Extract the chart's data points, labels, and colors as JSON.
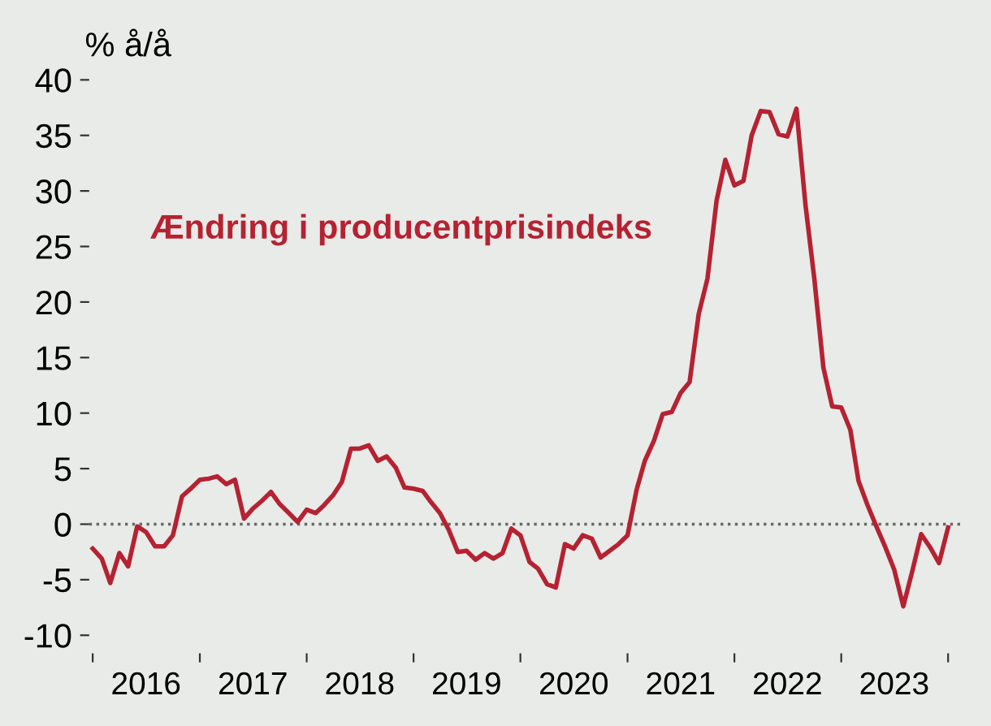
{
  "chart_data": {
    "type": "line",
    "ylabel": "% å/å",
    "legend": false,
    "grid": false,
    "marker": "none",
    "line_style": "solid",
    "x": [
      "2016-01",
      "2016-02",
      "2016-03",
      "2016-04",
      "2016-05",
      "2016-06",
      "2016-07",
      "2016-08",
      "2016-09",
      "2016-10",
      "2016-11",
      "2016-12",
      "2017-01",
      "2017-02",
      "2017-03",
      "2017-04",
      "2017-05",
      "2017-06",
      "2017-07",
      "2017-08",
      "2017-09",
      "2017-10",
      "2017-11",
      "2017-12",
      "2018-01",
      "2018-02",
      "2018-03",
      "2018-04",
      "2018-05",
      "2018-06",
      "2018-07",
      "2018-08",
      "2018-09",
      "2018-10",
      "2018-11",
      "2018-12",
      "2019-01",
      "2019-02",
      "2019-03",
      "2019-04",
      "2019-05",
      "2019-06",
      "2019-07",
      "2019-08",
      "2019-09",
      "2019-10",
      "2019-11",
      "2019-12",
      "2020-01",
      "2020-02",
      "2020-03",
      "2020-04",
      "2020-05",
      "2020-06",
      "2020-07",
      "2020-08",
      "2020-09",
      "2020-10",
      "2020-11",
      "2020-12",
      "2021-01",
      "2021-02",
      "2021-03",
      "2021-04",
      "2021-05",
      "2021-06",
      "2021-07",
      "2021-08",
      "2021-09",
      "2021-10",
      "2021-11",
      "2021-12",
      "2022-01",
      "2022-02",
      "2022-03",
      "2022-04",
      "2022-05",
      "2022-06",
      "2022-07",
      "2022-08",
      "2022-09",
      "2022-10",
      "2022-11",
      "2022-12",
      "2023-01",
      "2023-02",
      "2023-03",
      "2023-04",
      "2023-05",
      "2023-06",
      "2023-07",
      "2023-08",
      "2023-09",
      "2023-10",
      "2023-11",
      "2023-12",
      "2024-01"
    ],
    "series": [
      {
        "name": "Ændring i producentprisindeks",
        "color": "#b52232",
        "values": [
          -2.2,
          -3.1,
          -5.3,
          -2.6,
          -3.8,
          -0.2,
          -0.7,
          -2.0,
          -2.0,
          -1.0,
          2.5,
          3.2,
          4.0,
          4.1,
          4.3,
          3.6,
          4.0,
          0.5,
          1.4,
          2.1,
          2.9,
          1.8,
          1.0,
          0.2,
          1.3,
          1.0,
          1.7,
          2.6,
          3.8,
          6.8,
          6.8,
          7.1,
          5.7,
          6.1,
          5.1,
          3.3,
          3.2,
          3.0,
          2.0,
          1.0,
          -0.5,
          -2.5,
          -2.4,
          -3.2,
          -2.6,
          -3.1,
          -2.6,
          -0.4,
          -1.0,
          -3.4,
          -4.0,
          -5.4,
          -5.7,
          -1.8,
          -2.2,
          -1.0,
          -1.3,
          -3.0,
          -2.4,
          -1.8,
          -1.0,
          3.1,
          5.7,
          7.5,
          9.9,
          10.1,
          11.8,
          12.8,
          18.9,
          22.1,
          29.1,
          32.8,
          30.5,
          30.9,
          35.0,
          37.2,
          37.1,
          35.1,
          34.9,
          37.4,
          28.7,
          22.1,
          14.1,
          10.6,
          10.5,
          8.5,
          3.9,
          1.7,
          -0.2,
          -2.1,
          -4.1,
          -7.4,
          -4.2,
          -0.9,
          -2.1,
          -3.5,
          -0.3
        ]
      }
    ],
    "xlim": [
      "2015-12-20",
      "2024-02-15"
    ],
    "xticks": [
      {
        "value": "2016-01-01",
        "label": null
      },
      {
        "value": "2016-07-01",
        "label": "2016"
      },
      {
        "value": "2017-01-01",
        "label": null
      },
      {
        "value": "2017-07-01",
        "label": "2017"
      },
      {
        "value": "2018-01-01",
        "label": null
      },
      {
        "value": "2018-07-01",
        "label": "2018"
      },
      {
        "value": "2019-01-01",
        "label": null
      },
      {
        "value": "2019-07-01",
        "label": "2019"
      },
      {
        "value": "2020-01-01",
        "label": null
      },
      {
        "value": "2020-07-01",
        "label": "2020"
      },
      {
        "value": "2021-01-01",
        "label": null
      },
      {
        "value": "2021-07-01",
        "label": "2021"
      },
      {
        "value": "2022-01-01",
        "label": null
      },
      {
        "value": "2022-07-01",
        "label": "2022"
      },
      {
        "value": "2023-01-01",
        "label": null
      },
      {
        "value": "2023-07-01",
        "label": "2023"
      },
      {
        "value": "2024-01-01",
        "label": null
      }
    ],
    "ylim": [
      -10,
      40
    ],
    "yticks": [
      -10,
      -5,
      0,
      5,
      10,
      15,
      20,
      25,
      30,
      35,
      40
    ],
    "ref_lines": [
      {
        "axis": "y",
        "value": 0,
        "color": "#666666",
        "line_style": "dotted"
      }
    ]
  }
}
